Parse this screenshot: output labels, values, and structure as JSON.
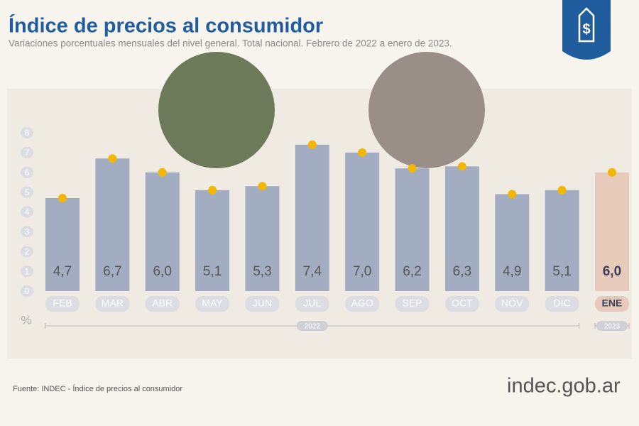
{
  "chart_data": {
    "type": "bar",
    "title": "Índice de precios al consumidor",
    "subtitle": "Variaciones porcentuales mensuales del nivel general. Total nacional. Febrero de 2022 a enero de 2023.",
    "groups": [
      {
        "label": "2022",
        "categories": [
          "FEB",
          "MAR",
          "ABR",
          "MAY",
          "JUN",
          "JUL",
          "AGO",
          "SEP",
          "OCT",
          "NOV",
          "DIC"
        ]
      },
      {
        "label": "2023",
        "categories": [
          "ENE"
        ]
      }
    ],
    "values": [
      4.7,
      6.7,
      6.0,
      5.1,
      5.3,
      7.4,
      7.0,
      6.2,
      6.3,
      4.9,
      5.1,
      6.0
    ],
    "value_labels": [
      "4,7",
      "6,7",
      "6,0",
      "5,1",
      "5,3",
      "7,4",
      "7,0",
      "6,2",
      "6,3",
      "4,9",
      "5,1",
      "6,0"
    ],
    "colors": [
      "#a3adc2",
      "#a3adc2",
      "#a3adc2",
      "#a3adc2",
      "#a3adc2",
      "#a3adc2",
      "#a3adc2",
      "#a3adc2",
      "#a3adc2",
      "#a3adc2",
      "#a3adc2",
      "#e6cbbb"
    ],
    "marker_color": "#f2b705",
    "y_label": "%",
    "ylim": [
      0,
      8
    ],
    "yticks": [
      0,
      1,
      2,
      3,
      4,
      5,
      6,
      7,
      8
    ],
    "source": "Fuente: INDEC - Índice de precios al consumidor",
    "brand": "indec.gob.ar"
  }
}
